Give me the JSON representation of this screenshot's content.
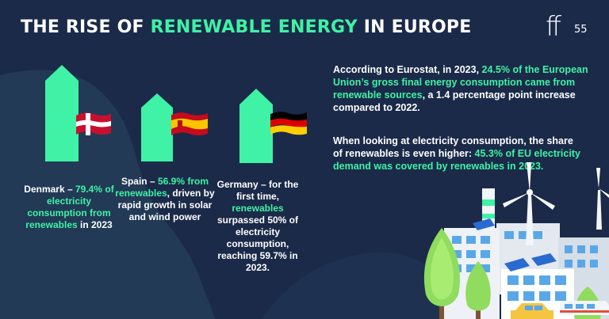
{
  "header": {
    "title_part1": "THE RISE OF ",
    "title_highlight": "RENEWABLE ENERGY",
    "title_part2": " IN EUROPE",
    "brand": "ff",
    "brand_sub": "55"
  },
  "colors": {
    "background": "#1b2a49",
    "accent": "#3ff2a5",
    "bg_shape": "#223a56"
  },
  "countries": [
    {
      "flag": "denmark-flag",
      "share": 79.4,
      "caption_prefix": "Denmark – ",
      "caption_highlight": "79.4% of electricity consumption from renewables",
      "caption_suffix": " in 2023"
    },
    {
      "flag": "spain-flag",
      "share": 56.9,
      "caption_prefix": "Spain – ",
      "caption_highlight": "56.9% from renewables",
      "caption_suffix": ", driven by rapid growth in solar and wind power"
    },
    {
      "flag": "germany-flag",
      "share": 59.7,
      "caption_prefix": "Germany – for the first time, ",
      "caption_highlight": "renewables",
      "caption_suffix": " surpassed 50% of electricity consumption, reaching 59.7% in 2023."
    }
  ],
  "info": {
    "p1_prefix": "According to Eurostat, in 2023, ",
    "p1_highlight": "24.5% of the European Union’s gross final energy consumption came from renewable sources",
    "p1_suffix": ", a 1.4 percentage point increase compared to 2022.",
    "p2_prefix": "When looking at electricity consumption, the share of renewables is even higher: ",
    "p2_highlight": "45.3% of EU electricity demand was covered by renewables in 2023."
  },
  "illustration": {
    "items": [
      "wind-turbine-icon",
      "buildings-icon",
      "trees-icon",
      "solar-panel-icon",
      "car-icon",
      "train-icon"
    ]
  }
}
